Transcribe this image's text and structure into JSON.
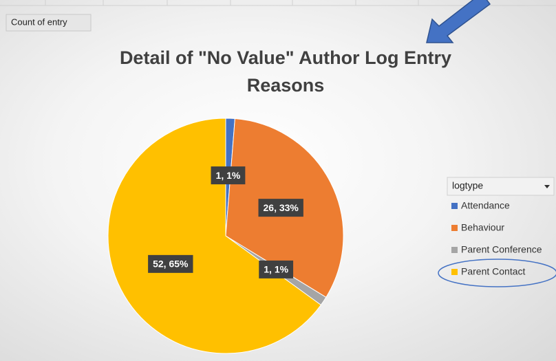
{
  "chart_data": {
    "type": "pie",
    "title": "Detail of \"No Value\" Author Log Entry Reasons",
    "field_button": "Count of entry",
    "legend_title": "logtype",
    "categories": [
      "Attendance",
      "Behaviour",
      "Parent Conference",
      "Parent Contact"
    ],
    "values": [
      1,
      26,
      1,
      52
    ],
    "value_labels": [
      "1, 1%",
      "26, 33%",
      "1, 1%",
      "52, 65%"
    ],
    "colors": [
      "#4472c4",
      "#ed7d31",
      "#a5a5a5",
      "#ffc000"
    ],
    "legend": "right"
  }
}
